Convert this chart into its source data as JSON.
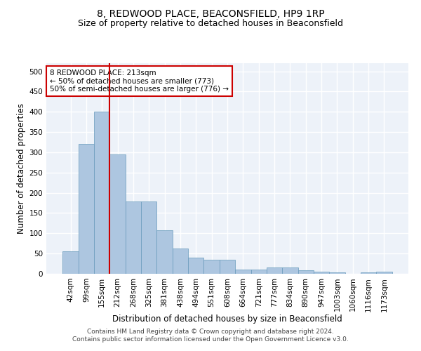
{
  "title1": "8, REDWOOD PLACE, BEACONSFIELD, HP9 1RP",
  "title2": "Size of property relative to detached houses in Beaconsfield",
  "xlabel": "Distribution of detached houses by size in Beaconsfield",
  "ylabel": "Number of detached properties",
  "footer1": "Contains HM Land Registry data © Crown copyright and database right 2024.",
  "footer2": "Contains public sector information licensed under the Open Government Licence v3.0.",
  "annotation_line1": "8 REDWOOD PLACE: 213sqm",
  "annotation_line2": "← 50% of detached houses are smaller (773)",
  "annotation_line3": "50% of semi-detached houses are larger (776) →",
  "red_line_index": 2,
  "categories": [
    "42sqm",
    "99sqm",
    "155sqm",
    "212sqm",
    "268sqm",
    "325sqm",
    "381sqm",
    "438sqm",
    "494sqm",
    "551sqm",
    "608sqm",
    "664sqm",
    "721sqm",
    "777sqm",
    "834sqm",
    "890sqm",
    "947sqm",
    "1003sqm",
    "1060sqm",
    "1116sqm",
    "1173sqm"
  ],
  "values": [
    55,
    320,
    400,
    295,
    178,
    178,
    107,
    62,
    40,
    35,
    35,
    10,
    10,
    15,
    15,
    8,
    5,
    3,
    0,
    3,
    5
  ],
  "bar_color": "#adc6e0",
  "bar_edge_color": "#6699bb",
  "red_line_color": "#cc0000",
  "background_color": "#ffffff",
  "plot_bg_color": "#edf2f9",
  "grid_color": "#ffffff",
  "ylim": [
    0,
    520
  ],
  "yticks": [
    0,
    50,
    100,
    150,
    200,
    250,
    300,
    350,
    400,
    450,
    500
  ],
  "annotation_box_edge_color": "#cc0000",
  "title1_fontsize": 10,
  "title2_fontsize": 9,
  "xlabel_fontsize": 8.5,
  "ylabel_fontsize": 8.5,
  "tick_fontsize": 7.5,
  "annotation_fontsize": 7.5,
  "footer_fontsize": 6.5
}
